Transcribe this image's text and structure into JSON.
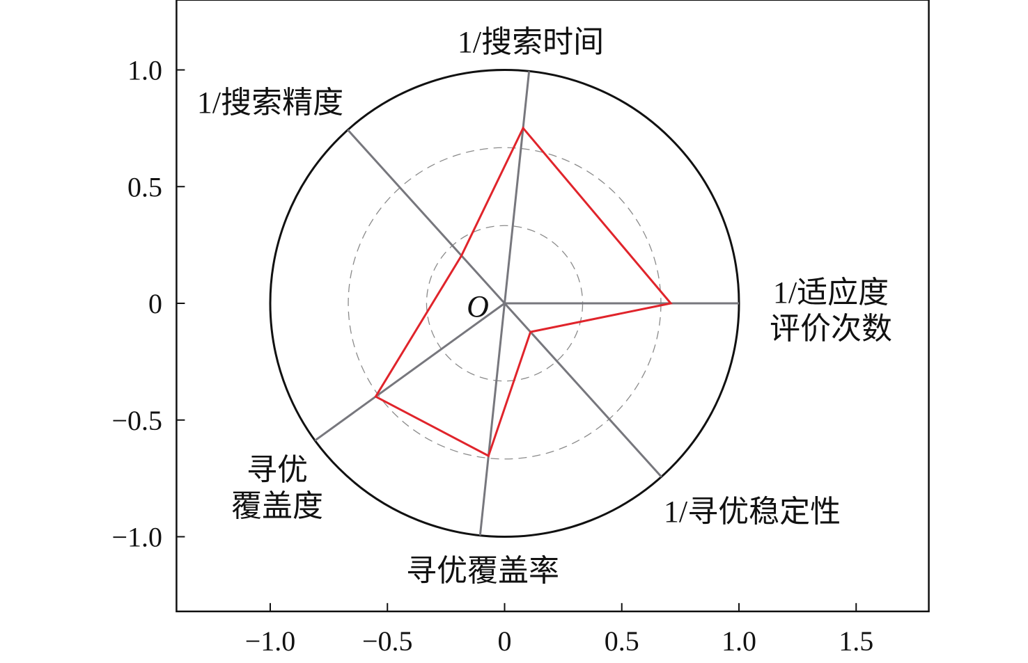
{
  "chart_data": {
    "type": "radar",
    "title": "",
    "xlim": [
      -1.4,
      1.81
    ],
    "ylim": [
      -1.32,
      1.3
    ],
    "x_ticks": [
      -1.0,
      -0.5,
      0,
      0.5,
      1.0,
      1.5
    ],
    "x_tick_labels": [
      "−1.0",
      "−0.5",
      "0",
      "0.5",
      "1.0",
      "1.5"
    ],
    "y_ticks": [
      1.0,
      0.5,
      0,
      -0.5,
      -1.0
    ],
    "y_tick_labels": [
      "1.0",
      "0.5",
      "0",
      "−0.5",
      "−1.0"
    ],
    "origin_label": "O",
    "outer_radius": 1.0,
    "dashed_circle_radii": [
      0.333,
      0.667
    ],
    "axes": [
      {
        "label": [
          "1/适应度",
          "评价次数"
        ],
        "angle_deg": 0,
        "value": 0.709
      },
      {
        "label": [
          "1/搜索时间"
        ],
        "angle_deg": 84,
        "value": 0.755
      },
      {
        "label": [
          "1/搜索精度"
        ],
        "angle_deg": 132,
        "value": 0.275
      },
      {
        "label": [
          "寻优",
          "覆盖度"
        ],
        "angle_deg": 216,
        "value": 0.68
      },
      {
        "label": [
          "寻优覆盖率"
        ],
        "angle_deg": 264,
        "value": 0.657
      },
      {
        "label": [
          "1/寻优稳定性"
        ],
        "angle_deg": 312,
        "value": 0.165
      }
    ],
    "colors": {
      "series": "#e0242b",
      "spokes": "#77777d",
      "dashed": "#8a8a8a",
      "frame": "#111111"
    }
  }
}
